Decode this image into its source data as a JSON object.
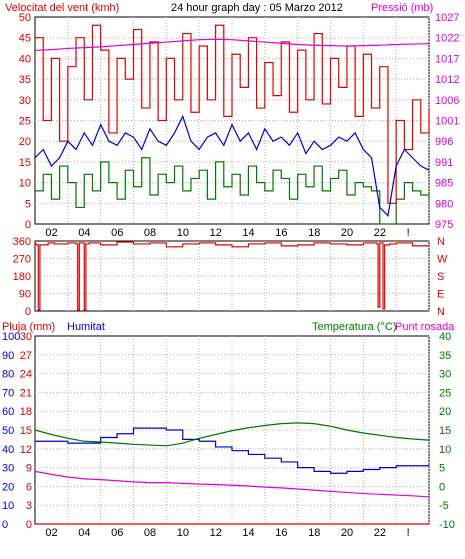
{
  "header": {
    "left_label": "Velocitat del vent (kmh)",
    "title": "24 hour graph day : 05 Marzo 2012",
    "right_label": "Pressió (mb)"
  },
  "colors": {
    "frame": "#000000",
    "grid": "#b0b0b0",
    "wind_gust": "#e00000",
    "wind_avg": "#0000cc",
    "wind_min": "#007700",
    "pressure": "#e000e0",
    "direction": "#dd0000",
    "rain": "#dd0000",
    "humidity": "#0000cc",
    "temperature": "#007700",
    "dewpoint": "#e000e0",
    "left_text": "#dd0000",
    "right_text": "#e000e0"
  },
  "chart_data": [
    {
      "type": "line",
      "panel": "wind",
      "xlim": [
        0,
        24
      ],
      "ylim": [
        0,
        50
      ],
      "y2lim": [
        975,
        1027
      ],
      "left_ticks": [
        "0",
        "5",
        "10",
        "15",
        "20",
        "25",
        "30",
        "35",
        "40",
        "45",
        "50"
      ],
      "right_ticks": [
        "975",
        "980",
        "985",
        "991",
        "996",
        "1001",
        "1006",
        "1012",
        "1017",
        "1022",
        "1027"
      ],
      "grid": true,
      "series": [
        {
          "role": "gust",
          "x": [
            0,
            0.5,
            1,
            1.5,
            2,
            2.5,
            3,
            3.5,
            4,
            4.5,
            5,
            5.5,
            6,
            6.5,
            7,
            7.5,
            8,
            8.5,
            9,
            9.5,
            10,
            10.5,
            11,
            11.5,
            12,
            12.5,
            13,
            13.5,
            14,
            14.5,
            15,
            15.5,
            16,
            16.5,
            17,
            17.5,
            18,
            18.5,
            19,
            19.5,
            20,
            20.5,
            21,
            21.5,
            22,
            22.5,
            23,
            23.5,
            24
          ],
          "values": [
            45,
            25,
            40,
            20,
            38,
            45,
            30,
            48,
            42,
            22,
            40,
            35,
            47,
            28,
            44,
            25,
            40,
            30,
            46,
            27,
            43,
            30,
            48,
            26,
            41,
            33,
            45,
            28,
            39,
            31,
            44,
            27,
            42,
            30,
            46,
            29,
            40,
            33,
            43,
            26,
            41,
            28,
            38,
            5,
            25,
            18,
            30,
            22,
            28
          ]
        },
        {
          "role": "average",
          "x": [
            0,
            0.5,
            1,
            1.5,
            2,
            2.5,
            3,
            3.5,
            4,
            4.5,
            5,
            5.5,
            6,
            6.5,
            7,
            7.5,
            8,
            8.5,
            9,
            9.5,
            10,
            10.5,
            11,
            11.5,
            12,
            12.5,
            13,
            13.5,
            14,
            14.5,
            15,
            15.5,
            16,
            16.5,
            17,
            17.5,
            18,
            18.5,
            19,
            19.5,
            20,
            20.5,
            21,
            21.5,
            22,
            22.5,
            23,
            23.5,
            24
          ],
          "values": [
            16,
            18,
            14,
            16,
            20,
            18,
            22,
            19,
            24,
            20,
            19,
            22,
            21,
            18,
            23,
            20,
            19,
            22,
            26,
            20,
            18,
            21,
            22,
            19,
            24,
            20,
            22,
            18,
            23,
            20,
            21,
            19,
            22,
            17,
            20,
            18,
            19,
            21,
            20,
            22,
            18,
            16,
            4,
            2,
            14,
            18,
            16,
            14,
            13
          ]
        },
        {
          "role": "minimum",
          "x": [
            0,
            0.5,
            1,
            1.5,
            2,
            2.5,
            3,
            3.5,
            4,
            4.5,
            5,
            5.5,
            6,
            6.5,
            7,
            7.5,
            8,
            8.5,
            9,
            9.5,
            10,
            10.5,
            11,
            11.5,
            12,
            12.5,
            13,
            13.5,
            14,
            14.5,
            15,
            15.5,
            16,
            16.5,
            17,
            17.5,
            18,
            18.5,
            19,
            19.5,
            20,
            20.5,
            21,
            21.5,
            22,
            22.5,
            23,
            23.5,
            24
          ],
          "values": [
            8,
            12,
            6,
            14,
            10,
            4,
            12,
            8,
            15,
            10,
            6,
            13,
            9,
            16,
            7,
            12,
            10,
            14,
            8,
            11,
            13,
            6,
            15,
            9,
            12,
            7,
            14,
            10,
            8,
            13,
            11,
            6,
            12,
            9,
            14,
            8,
            11,
            13,
            7,
            10,
            9,
            8,
            0,
            0,
            6,
            10,
            8,
            7,
            5
          ]
        },
        {
          "role": "pressure",
          "axis": "right",
          "x": [
            0,
            1,
            2,
            3,
            4,
            5,
            6,
            7,
            8,
            9,
            10,
            11,
            12,
            13,
            14,
            15,
            16,
            17,
            18,
            19,
            20,
            21,
            22,
            23,
            24
          ],
          "values": [
            1018.6,
            1018.8,
            1019.1,
            1019.3,
            1019.5,
            1019.8,
            1020.1,
            1020.4,
            1020.7,
            1021.0,
            1021.3,
            1021.4,
            1021.3,
            1021.0,
            1020.7,
            1020.4,
            1020.1,
            1019.9,
            1019.8,
            1019.7,
            1019.8,
            1019.9,
            1020.1,
            1020.2,
            1020.3
          ]
        }
      ]
    },
    {
      "type": "line",
      "panel": "direction",
      "xlim": [
        0,
        24
      ],
      "ylim": [
        0,
        360
      ],
      "left_ticks": [
        "0",
        "90",
        "180",
        "270",
        "360"
      ],
      "right_labels": [
        "N",
        "W",
        "S",
        "E",
        "N"
      ],
      "grid": true,
      "series": [
        {
          "role": "direction",
          "x": [
            0,
            0.1,
            0.2,
            0.3,
            0.8,
            1.2,
            2,
            2.5,
            2.6,
            2.7,
            2.9,
            3.0,
            3.1,
            3.3,
            4,
            5,
            6,
            7,
            8,
            9,
            10,
            11,
            12,
            13,
            14,
            15,
            16,
            17,
            18,
            19,
            20,
            20.8,
            20.9,
            21.0,
            21.2,
            21.3,
            21.6,
            22,
            23,
            24
          ],
          "values": [
            345,
            340,
            5,
            340,
            350,
            345,
            350,
            345,
            5,
            350,
            350,
            5,
            345,
            350,
            340,
            355,
            345,
            350,
            330,
            345,
            350,
            340,
            330,
            345,
            350,
            335,
            340,
            350,
            345,
            340,
            350,
            345,
            20,
            350,
            10,
            340,
            345,
            350,
            335,
            330
          ]
        }
      ]
    },
    {
      "type": "line",
      "panel": "rain-humidity-temp",
      "xlim": [
        0,
        24
      ],
      "left_rain_ticks": [
        "0",
        "3",
        "6",
        "9",
        "12",
        "15",
        "18",
        "21",
        "24",
        "27",
        "30"
      ],
      "left_humidity_ticks": [
        "0",
        "10",
        "20",
        "30",
        "40",
        "50",
        "60",
        "70",
        "80",
        "90",
        "100"
      ],
      "right_temp_ticks": [
        "-10",
        "-5",
        "0",
        "5",
        "10",
        "15",
        "20",
        "25",
        "30",
        "35",
        "40"
      ],
      "labels": {
        "rain": "Pluja (mm)",
        "humidity": "Humitat",
        "temperature": "Temperatura (°C)",
        "dewpoint": "Punt rosada"
      },
      "grid": true,
      "series": [
        {
          "role": "rain",
          "axis": "left_rain",
          "x": [
            0,
            24
          ],
          "values": [
            0,
            0
          ]
        },
        {
          "role": "humidity",
          "axis": "left_humidity",
          "x": [
            0,
            1,
            2,
            3,
            4,
            5,
            6,
            7,
            8,
            9,
            10,
            11,
            12,
            13,
            14,
            15,
            16,
            17,
            18,
            19,
            20,
            21,
            22,
            23,
            24
          ],
          "values": [
            44,
            44,
            43,
            43,
            46,
            48,
            51,
            51,
            50,
            45,
            44,
            41,
            39,
            37,
            35,
            33,
            30,
            28,
            27,
            28,
            29,
            30,
            31,
            31,
            31
          ]
        },
        {
          "role": "temperature",
          "axis": "right_temp",
          "x": [
            0,
            1,
            2,
            3,
            4,
            5,
            6,
            7,
            8,
            9,
            10,
            11,
            12,
            13,
            14,
            15,
            16,
            17,
            18,
            19,
            20,
            21,
            22,
            23,
            24
          ],
          "values": [
            15,
            13.8,
            12.8,
            12,
            11.8,
            11.5,
            11.2,
            11,
            10.8,
            11.5,
            12.8,
            13.8,
            14.8,
            15.6,
            16.2,
            16.7,
            16.9,
            16.7,
            16,
            15,
            14.2,
            13.6,
            13,
            12.6,
            12.3
          ]
        },
        {
          "role": "dewpoint",
          "axis": "right_temp",
          "x": [
            0,
            1,
            2,
            3,
            4,
            5,
            6,
            7,
            8,
            9,
            10,
            11,
            12,
            13,
            14,
            15,
            16,
            17,
            18,
            19,
            20,
            21,
            22,
            23,
            24
          ],
          "values": [
            4,
            3.2,
            2.5,
            2,
            1.8,
            1.5,
            1.2,
            1,
            1,
            0.8,
            0.6,
            0.5,
            0.3,
            0.1,
            -0.2,
            -0.4,
            -0.7,
            -1,
            -1.3,
            -1.6,
            -1.9,
            -2.1,
            -2.3,
            -2.5,
            -2.8
          ]
        }
      ]
    }
  ],
  "x_tick_labels": [
    "02",
    "04",
    "06",
    "08",
    "10",
    "12",
    "14",
    "16",
    "18",
    "20",
    "22",
    "!"
  ]
}
